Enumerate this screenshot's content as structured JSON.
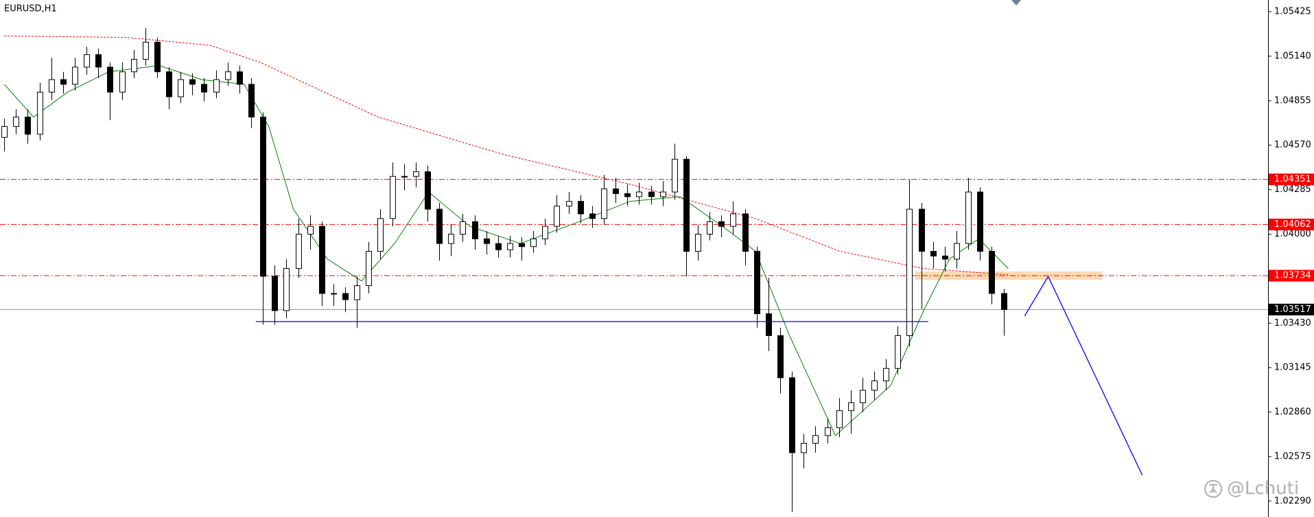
{
  "chart_data": {
    "type": "candlestick",
    "title": "EURUSD,H1",
    "watermark": "@Lchuti",
    "xlim": [
      -0.36,
      107.5
    ],
    "ylim": [
      1.02188,
      1.055
    ],
    "yticks": [
      1.05425,
      {
        "value": 1.0514,
        "label": "1.05140"
      },
      1.04855,
      {
        "value": 1.0457,
        "label": "1.04570"
      },
      1.04285,
      {
        "value": 1.04,
        "label": "1.04000"
      },
      {
        "value": 1.0343,
        "label": "1.03430"
      },
      1.03145,
      {
        "value": 1.0286,
        "label": "1.02860"
      },
      1.02575,
      {
        "value": 1.0229,
        "label": "1.02290"
      }
    ],
    "bull_color": "#ffffff",
    "bear_color": "#000000",
    "open": [
      1.0462,
      1.0469,
      1.0475,
      1.0464,
      1.0491,
      1.0499,
      1.0496,
      1.0507,
      1.0515,
      1.0507,
      1.0491,
      1.0504,
      1.0512,
      1.0523,
      1.0504,
      1.0488,
      1.0499,
      1.0496,
      1.0491,
      1.0499,
      1.0504,
      1.0496,
      1.0475,
      1.0373,
      1.0351,
      1.0378,
      1.04,
      1.0405,
      1.0362,
      1.0362,
      1.0358,
      1.0367,
      1.0389,
      1.041,
      1.0437,
      1.0437,
      1.044,
      1.0416,
      1.0394,
      1.04,
      1.0408,
      1.0397,
      1.0394,
      1.039,
      1.0394,
      1.0392,
      1.0397,
      1.0405,
      1.0418,
      1.0421,
      1.0413,
      1.041,
      1.0429,
      1.0426,
      1.0424,
      1.0427,
      1.0424,
      1.0427,
      1.0448,
      1.0389,
      1.04,
      1.0408,
      1.0405,
      1.0413,
      1.0389,
      1.0349,
      1.0335,
      1.0308,
      1.026,
      1.0266,
      1.0271,
      1.0276,
      1.0287,
      1.0292,
      1.03,
      1.0306,
      1.0314,
      1.0335,
      1.0416,
      1.0389,
      1.0386,
      1.0384,
      1.0394,
      1.0427,
      1.0389,
      1.0362
    ],
    "high": [
      1.0474,
      1.048,
      1.048,
      1.0497,
      1.0513,
      1.0504,
      1.0513,
      1.052,
      1.0519,
      1.051,
      1.051,
      1.0518,
      1.0532,
      1.0526,
      1.0507,
      1.0504,
      1.0503,
      1.05,
      1.0505,
      1.051,
      1.0508,
      1.05,
      1.0478,
      1.038,
      1.0384,
      1.041,
      1.0412,
      1.0408,
      1.0368,
      1.0366,
      1.0373,
      1.0395,
      1.0416,
      1.0446,
      1.0445,
      1.0446,
      1.0444,
      1.042,
      1.0406,
      1.0413,
      1.0412,
      1.0402,
      1.0399,
      1.0399,
      1.0398,
      1.0402,
      1.041,
      1.0425,
      1.0427,
      1.0425,
      1.0418,
      1.0438,
      1.0436,
      1.0432,
      1.0433,
      1.0431,
      1.0434,
      1.0458,
      1.045,
      1.0406,
      1.0414,
      1.0412,
      1.0421,
      1.0416,
      1.0392,
      1.0372,
      1.034,
      1.0312,
      1.0272,
      1.0277,
      1.0282,
      1.0295,
      1.03,
      1.0308,
      1.0312,
      1.032,
      1.0341,
      1.0435,
      1.042,
      1.0395,
      1.0392,
      1.0402,
      1.0436,
      1.043,
      1.0392,
      1.0365
    ],
    "low": [
      1.0453,
      1.0464,
      1.0458,
      1.046,
      1.0486,
      1.049,
      1.0492,
      1.0502,
      1.05,
      1.0473,
      1.0486,
      1.05,
      1.0508,
      1.05,
      1.048,
      1.0484,
      1.0489,
      1.0485,
      1.0487,
      1.0495,
      1.049,
      1.0468,
      1.0342,
      1.0342,
      1.0346,
      1.0372,
      1.039,
      1.0354,
      1.0354,
      1.035,
      1.034,
      1.0362,
      1.0384,
      1.0405,
      1.0428,
      1.043,
      1.0408,
      1.0383,
      1.0386,
      1.0395,
      1.039,
      1.0387,
      1.0385,
      1.0385,
      1.0383,
      1.0388,
      1.0393,
      1.0401,
      1.0413,
      1.0407,
      1.0404,
      1.0406,
      1.042,
      1.0418,
      1.0419,
      1.0419,
      1.0418,
      1.0422,
      1.0373,
      1.0383,
      1.0396,
      1.0398,
      1.04,
      1.038,
      1.034,
      1.0325,
      1.0298,
      1.0222,
      1.025,
      1.026,
      1.0266,
      1.027,
      1.0272,
      1.0286,
      1.0294,
      1.03,
      1.031,
      1.0328,
      1.0352,
      1.0378,
      1.0376,
      1.0378,
      1.039,
      1.0383,
      1.0355,
      1.0335
    ],
    "close": [
      1.0469,
      1.0475,
      1.0464,
      1.0491,
      1.0499,
      1.0496,
      1.0507,
      1.0515,
      1.0507,
      1.0491,
      1.0504,
      1.0512,
      1.0523,
      1.0504,
      1.0488,
      1.0499,
      1.0496,
      1.0491,
      1.0499,
      1.0504,
      1.0496,
      1.0475,
      1.0373,
      1.0351,
      1.0378,
      1.04,
      1.0405,
      1.0362,
      1.0362,
      1.0358,
      1.0367,
      1.0389,
      1.041,
      1.0437,
      1.0437,
      1.044,
      1.0416,
      1.0394,
      1.04,
      1.0408,
      1.0397,
      1.0394,
      1.039,
      1.0394,
      1.0392,
      1.0397,
      1.0405,
      1.0418,
      1.0421,
      1.0413,
      1.041,
      1.0429,
      1.0426,
      1.0424,
      1.0427,
      1.0424,
      1.0427,
      1.0448,
      1.0389,
      1.04,
      1.0408,
      1.0405,
      1.0413,
      1.0389,
      1.0349,
      1.0335,
      1.0308,
      1.026,
      1.0266,
      1.0271,
      1.0276,
      1.0287,
      1.0292,
      1.03,
      1.0306,
      1.0314,
      1.0335,
      1.0416,
      1.0389,
      1.0386,
      1.0384,
      1.0394,
      1.0427,
      1.0389,
      1.0362,
      1.03517
    ],
    "series": [
      {
        "color": "#008000",
        "dash": false,
        "x": [
          0,
          2.5,
          5.4,
          8.9,
          13.2,
          16.8,
          20.4,
          22.5,
          24.6,
          27.5,
          30.4,
          33.2,
          36.1,
          39.6,
          43.9,
          48.9,
          53.2,
          57.5,
          61.1,
          63.9,
          66.8,
          70.7,
          75.4,
          78.2,
          80.4,
          82.9,
          85.4
        ],
        "values": [
          1.0496,
          1.0475,
          1.0491,
          1.0504,
          1.0508,
          1.0499,
          1.0496,
          1.0469,
          1.0416,
          1.0384,
          1.037,
          1.0394,
          1.0427,
          1.0405,
          1.0394,
          1.0408,
          1.0421,
          1.0424,
          1.0405,
          1.0389,
          1.0335,
          1.0271,
          1.0303,
          1.0351,
          1.0384,
          1.0397,
          1.0378
        ]
      },
      {
        "color": "#ff0000",
        "dash": true,
        "x": [
          0,
          10.4,
          17.5,
          21.8,
          31.8,
          42.5,
          53.2,
          63.9,
          71.1,
          78.2,
          85.4
        ],
        "values": [
          1.0527,
          1.0526,
          1.0521,
          1.051,
          1.0475,
          1.0451,
          1.0432,
          1.041,
          1.0389,
          1.0378,
          1.0374
        ]
      }
    ],
    "levels": [
      {
        "value": 1.04351,
        "color": "#ff0000",
        "dash": true
      },
      {
        "value": 1.04062,
        "color": "#ff0000",
        "dash": true
      },
      {
        "value": 1.03734,
        "color": "#ff0000",
        "dash": true
      },
      {
        "value": 1.03517,
        "color": "#000000",
        "dash": false
      }
    ],
    "trendlines": [
      {
        "color": "#0000ff",
        "x": [
          21.4,
          78.6
        ],
        "values": [
          1.0344,
          1.0344
        ]
      },
      {
        "color": "#0000ff",
        "x": [
          86.8,
          88.8,
          96.8
        ],
        "values": [
          1.03476,
          1.03729,
          1.02456
        ]
      }
    ],
    "zones": [
      {
        "color": "#fdd3a6",
        "x": [
          77.5,
          93.4
        ],
        "values": [
          1.03707,
          1.03761
        ]
      }
    ]
  }
}
